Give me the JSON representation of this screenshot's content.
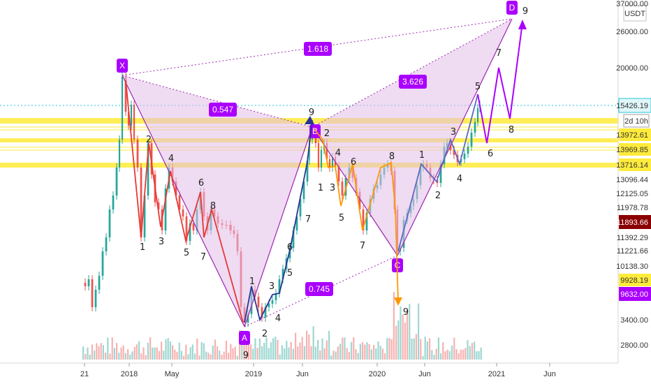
{
  "chart_data": {
    "type": "candlestick",
    "quote_unit": "USDT",
    "price_axis": {
      "scale": "log",
      "ticks": [
        "37000.00",
        "26000.00",
        "20000.00",
        "15426.19",
        "13972.61",
        "13969.85",
        "13716.14",
        "13096.44",
        "12125.05",
        "11978.78",
        "11893.66",
        "11392.29",
        "11221.66",
        "10138.30",
        "9928.19",
        "9632.00",
        "3400.00",
        "2800.00"
      ],
      "current_price": "11893.66",
      "countdown": "2d 10h"
    },
    "time_axis": [
      "21",
      "2018",
      "May",
      "2019",
      "Jun",
      "2020",
      "Jun",
      "2021",
      "Jun"
    ],
    "harmonic_pattern": {
      "points": [
        "X",
        "A",
        "B",
        "C",
        "D"
      ],
      "ratios": [
        "0.547",
        "0.745",
        "1.618",
        "3.626"
      ]
    },
    "wave_labels": [
      "1",
      "2",
      "3",
      "4",
      "5",
      "6",
      "7",
      "8",
      "9"
    ],
    "colors": {
      "up": "#26a69a",
      "down": "#ef5350",
      "pattern": "#9c27b0",
      "pattern_fill": "#e1bee7",
      "support": "#ffeb3b",
      "current": "#8b0000",
      "price_line": "#26c6da"
    }
  }
}
